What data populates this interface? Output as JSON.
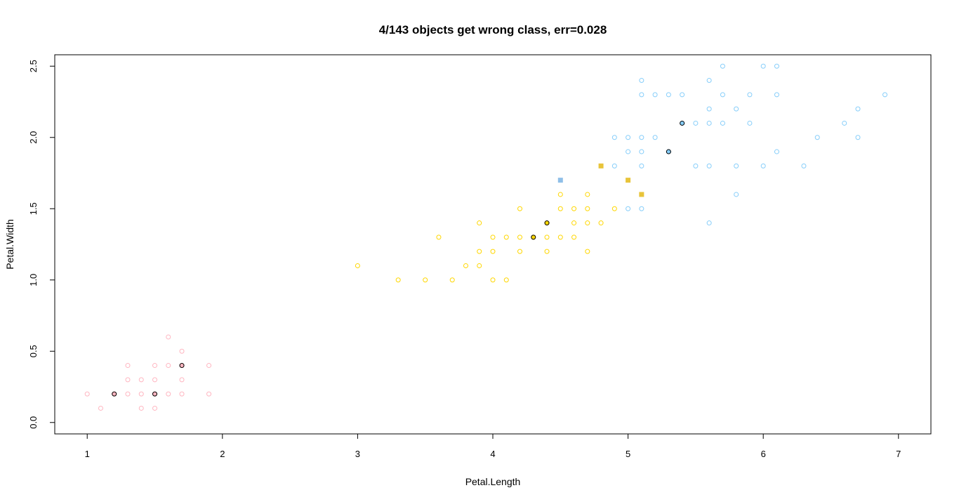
{
  "chart_data": {
    "type": "scatter",
    "title": "4/143 objects get wrong class, err=0.028",
    "xlabel": "Petal.Length",
    "ylabel": "Petal.Width",
    "xlim": [
      0.76,
      7.24
    ],
    "ylim": [
      -0.08,
      2.58
    ],
    "xticks": [
      1,
      2,
      3,
      4,
      5,
      6,
      7
    ],
    "yticks": [
      0.0,
      0.5,
      1.0,
      1.5,
      2.0,
      2.5
    ],
    "ytick_labels": [
      "0.0",
      "0.5",
      "1.0",
      "1.5",
      "2.0",
      "2.5"
    ],
    "grid": false,
    "colors": {
      "setosa": "#ffb6c1",
      "versicolor": "#ffd700",
      "virginica": "#87cefa",
      "misclassified_versicolor": "#e8c43a",
      "misclassified_virginica": "#8fbfe8"
    },
    "series": [
      {
        "color_key": "setosa",
        "marker": "open-circle",
        "points": [
          [
            1.0,
            0.2
          ],
          [
            1.1,
            0.1
          ],
          [
            1.2,
            0.2
          ],
          [
            1.3,
            0.4
          ],
          [
            1.3,
            0.3
          ],
          [
            1.3,
            0.2
          ],
          [
            1.4,
            0.3
          ],
          [
            1.4,
            0.2
          ],
          [
            1.4,
            0.1
          ],
          [
            1.5,
            0.4
          ],
          [
            1.5,
            0.3
          ],
          [
            1.5,
            0.2
          ],
          [
            1.5,
            0.1
          ],
          [
            1.6,
            0.6
          ],
          [
            1.6,
            0.4
          ],
          [
            1.6,
            0.2
          ],
          [
            1.7,
            0.5
          ],
          [
            1.7,
            0.4
          ],
          [
            1.7,
            0.3
          ],
          [
            1.7,
            0.2
          ],
          [
            1.9,
            0.4
          ],
          [
            1.9,
            0.2
          ]
        ]
      },
      {
        "color_key": "versicolor",
        "marker": "open-circle",
        "points": [
          [
            3.0,
            1.1
          ],
          [
            3.3,
            1.0
          ],
          [
            3.5,
            1.0
          ],
          [
            3.6,
            1.3
          ],
          [
            3.7,
            1.0
          ],
          [
            3.8,
            1.1
          ],
          [
            3.9,
            1.4
          ],
          [
            3.9,
            1.2
          ],
          [
            3.9,
            1.1
          ],
          [
            4.0,
            1.3
          ],
          [
            4.0,
            1.2
          ],
          [
            4.0,
            1.0
          ],
          [
            4.1,
            1.3
          ],
          [
            4.1,
            1.0
          ],
          [
            4.2,
            1.5
          ],
          [
            4.2,
            1.3
          ],
          [
            4.2,
            1.2
          ],
          [
            4.3,
            1.3
          ],
          [
            4.4,
            1.4
          ],
          [
            4.4,
            1.3
          ],
          [
            4.4,
            1.2
          ],
          [
            4.5,
            1.6
          ],
          [
            4.5,
            1.5
          ],
          [
            4.5,
            1.3
          ],
          [
            4.6,
            1.5
          ],
          [
            4.6,
            1.4
          ],
          [
            4.6,
            1.3
          ],
          [
            4.7,
            1.6
          ],
          [
            4.7,
            1.5
          ],
          [
            4.7,
            1.4
          ],
          [
            4.7,
            1.2
          ],
          [
            4.8,
            1.4
          ],
          [
            4.9,
            1.5
          ]
        ]
      },
      {
        "color_key": "virginica",
        "marker": "open-circle",
        "points": [
          [
            4.9,
            2.0
          ],
          [
            4.9,
            1.8
          ],
          [
            5.0,
            2.0
          ],
          [
            5.0,
            1.9
          ],
          [
            5.0,
            1.5
          ],
          [
            5.1,
            2.4
          ],
          [
            5.1,
            2.3
          ],
          [
            5.1,
            2.0
          ],
          [
            5.1,
            1.9
          ],
          [
            5.1,
            1.8
          ],
          [
            5.1,
            1.5
          ],
          [
            5.2,
            2.3
          ],
          [
            5.2,
            2.0
          ],
          [
            5.3,
            2.3
          ],
          [
            5.3,
            1.9
          ],
          [
            5.4,
            2.3
          ],
          [
            5.4,
            2.1
          ],
          [
            5.5,
            2.1
          ],
          [
            5.5,
            1.8
          ],
          [
            5.6,
            2.4
          ],
          [
            5.6,
            2.2
          ],
          [
            5.6,
            2.1
          ],
          [
            5.6,
            1.8
          ],
          [
            5.6,
            1.4
          ],
          [
            5.7,
            2.5
          ],
          [
            5.7,
            2.3
          ],
          [
            5.7,
            2.1
          ],
          [
            5.8,
            2.2
          ],
          [
            5.8,
            1.8
          ],
          [
            5.8,
            1.6
          ],
          [
            5.9,
            2.3
          ],
          [
            5.9,
            2.1
          ],
          [
            6.0,
            2.5
          ],
          [
            6.0,
            1.8
          ],
          [
            6.1,
            2.5
          ],
          [
            6.1,
            2.3
          ],
          [
            6.1,
            1.9
          ],
          [
            6.3,
            1.8
          ],
          [
            6.4,
            2.0
          ],
          [
            6.6,
            2.1
          ],
          [
            6.7,
            2.2
          ],
          [
            6.7,
            2.0
          ],
          [
            6.9,
            2.3
          ]
        ]
      },
      {
        "color_key": "misclassified_versicolor",
        "marker": "filled-square",
        "points": [
          [
            4.8,
            1.8
          ],
          [
            5.0,
            1.7
          ],
          [
            5.1,
            1.6
          ]
        ]
      },
      {
        "color_key": "misclassified_virginica",
        "marker": "filled-square",
        "points": [
          [
            4.5,
            1.7
          ]
        ]
      },
      {
        "color_key": "setosa",
        "marker": "filled-circle-black-edge",
        "points": [
          [
            1.2,
            0.2
          ],
          [
            1.5,
            0.2
          ],
          [
            1.7,
            0.4
          ]
        ]
      },
      {
        "color_key": "versicolor",
        "marker": "filled-circle-black-edge",
        "points": [
          [
            4.3,
            1.3
          ],
          [
            4.4,
            1.4
          ]
        ]
      },
      {
        "color_key": "virginica",
        "marker": "filled-circle-black-edge",
        "points": [
          [
            5.3,
            1.9
          ],
          [
            5.4,
            2.1
          ]
        ]
      }
    ]
  }
}
